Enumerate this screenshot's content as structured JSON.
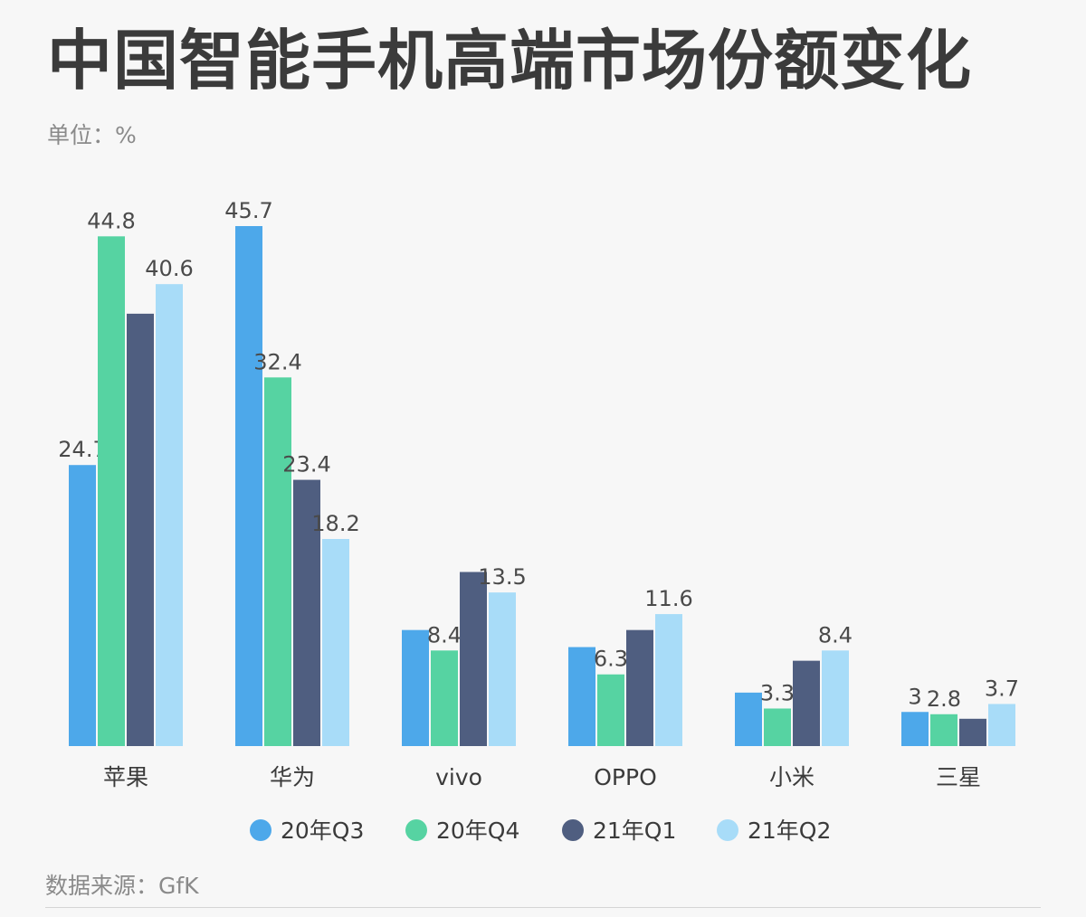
{
  "title": "中国智能手机高端市场份额变化",
  "unit_label": "单位：%",
  "source_label": "数据来源：GfK",
  "chart_data": {
    "type": "bar",
    "title": "中国智能手机高端市场份额变化",
    "categories": [
      "苹果",
      "华为",
      "vivo",
      "OPPO",
      "小米",
      "三星"
    ],
    "series": [
      {
        "name": "20年Q3",
        "color": "#4da8ea",
        "values": [
          24.7,
          45.7,
          10.2,
          8.7,
          4.7,
          3
        ]
      },
      {
        "name": "20年Q4",
        "color": "#56d3a2",
        "values": [
          44.8,
          32.4,
          8.4,
          6.3,
          3.3,
          2.8
        ]
      },
      {
        "name": "21年Q1",
        "color": "#4f5e80",
        "values": [
          38.0,
          23.4,
          15.3,
          10.2,
          7.5,
          2.4
        ]
      },
      {
        "name": "21年Q2",
        "color": "#a8dcf8",
        "values": [
          40.6,
          18.2,
          13.5,
          11.6,
          8.4,
          3.7
        ]
      }
    ],
    "labels": [
      [
        "24.7",
        "45.7",
        "",
        "",
        "",
        "3"
      ],
      [
        "44.8",
        "32.4",
        "8.4",
        "6.3",
        "3.3",
        "2.8"
      ],
      [
        "",
        "23.4",
        "",
        "",
        "",
        ""
      ],
      [
        "40.6",
        "18.2",
        "13.5",
        "11.6",
        "8.4",
        "3.7"
      ]
    ],
    "ylim": [
      0,
      46.5
    ],
    "grid": false,
    "legend_position": "bottom"
  }
}
